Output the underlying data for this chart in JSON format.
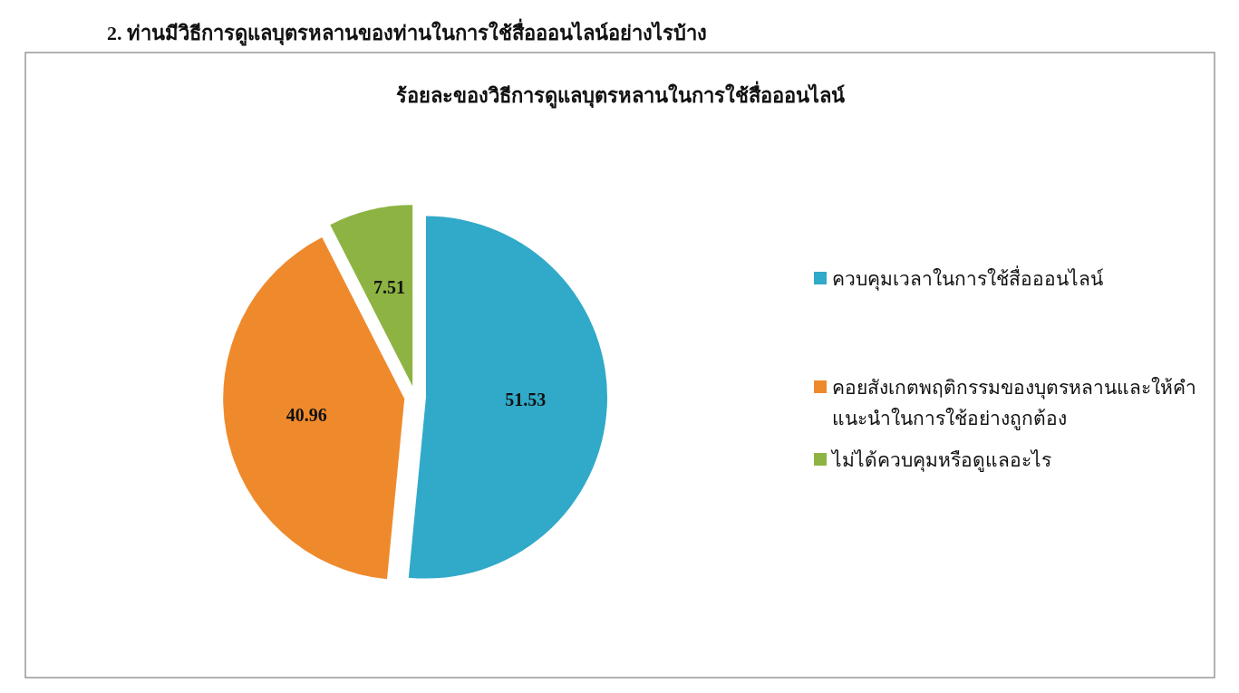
{
  "chart_data": {
    "type": "pie",
    "title": "2.  ท่านมีวิธีการดูแลบุตรหลานของท่านในการใช้สื่อออนไลน์อย่างไรบ้าง",
    "subtitle": "ร้อยละของวิธีการดูแลบุตรหลานในการใช้สื่อออนไลน์",
    "categories": [
      "ควบคุมเวลาในการใช้สื่อออนไลน์",
      "คอยสังเกตพฤติกรรมของบุตรหลานและให้คำแนะนำในการใช้อย่างถูกต้อง",
      "ไม่ได้ควบคุมหรือดูแลอะไร"
    ],
    "values": [
      51.53,
      40.96,
      7.51
    ],
    "colors": [
      "#31a9c9",
      "#ef8a2c",
      "#8db443"
    ],
    "data_labels": true,
    "legend": "right"
  }
}
